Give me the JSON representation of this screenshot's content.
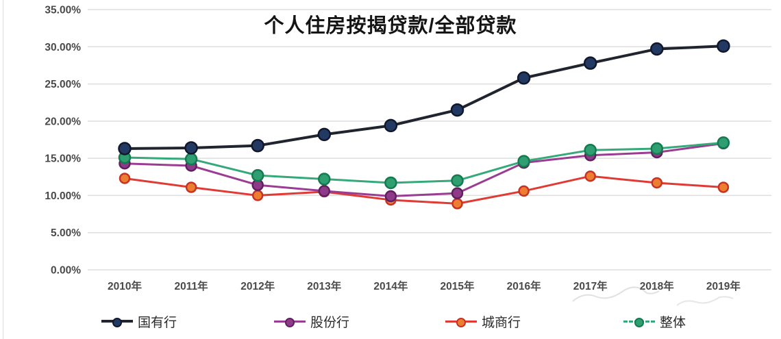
{
  "chart_data": {
    "type": "line",
    "title": "个人住房按揭贷款/全部贷款",
    "categories": [
      "2010年",
      "2011年",
      "2012年",
      "2013年",
      "2014年",
      "2015年",
      "2016年",
      "2017年",
      "2018年",
      "2019年"
    ],
    "series": [
      {
        "name": "城商行",
        "values": [
          12.3,
          11.1,
          10.0,
          10.5,
          9.4,
          8.9,
          10.6,
          12.6,
          11.7,
          11.1
        ],
        "line_color": "#e03a34",
        "marker_fill": "#ed7d31",
        "marker_stroke": "#c63325",
        "line_width": 3,
        "marker_radius": 7,
        "legend_dash": false
      },
      {
        "name": "股份行",
        "values": [
          14.3,
          14.0,
          11.4,
          10.6,
          9.9,
          10.3,
          14.4,
          15.4,
          15.8,
          17.0
        ],
        "line_color": "#993c92",
        "marker_fill": "#8f3a88",
        "marker_stroke": "#5f2060",
        "line_width": 3,
        "marker_radius": 7.5,
        "legend_dash": false
      },
      {
        "name": "整体",
        "values": [
          15.1,
          14.9,
          12.7,
          12.2,
          11.7,
          12.0,
          14.6,
          16.1,
          16.3,
          17.1
        ],
        "line_color": "#35a97a",
        "marker_fill": "#2f9e70",
        "marker_stroke": "#157a50",
        "line_width": 3,
        "marker_radius": 8,
        "legend_dash": true
      },
      {
        "name": "国有行",
        "values": [
          16.3,
          16.4,
          16.7,
          18.2,
          19.4,
          21.5,
          25.8,
          27.8,
          29.7,
          30.1
        ],
        "line_color": "#20242e",
        "marker_fill": "#223a63",
        "marker_stroke": "#12182b",
        "line_width": 4,
        "marker_radius": 8.5,
        "legend_dash": false
      }
    ],
    "legend_order": [
      "国有行",
      "股份行",
      "城商行",
      "整体"
    ],
    "legend_position": "bottom",
    "grid": true,
    "y_axis": {
      "min": 0,
      "max": 35,
      "tick_step": 5,
      "tick_labels": [
        "0.00%",
        "5.00%",
        "10.00%",
        "15.00%",
        "20.00%",
        "25.00%",
        "30.00%",
        "35.00%"
      ]
    },
    "axis_label_color": "#4a4a4a",
    "gridline_color": "#dedede"
  }
}
